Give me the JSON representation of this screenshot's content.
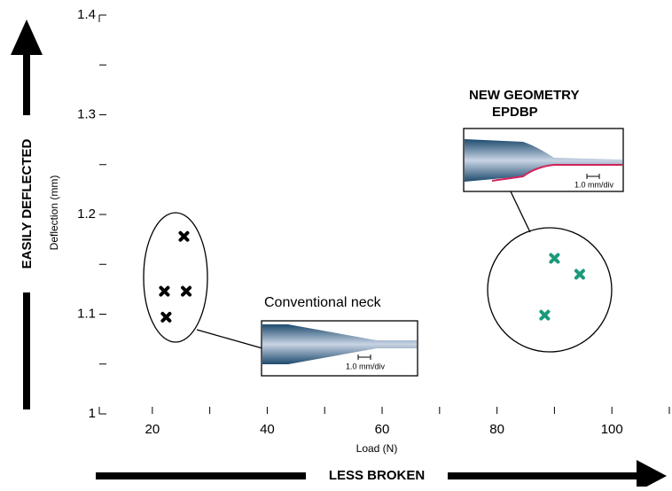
{
  "chart_data": {
    "type": "scatter",
    "xlabel": "Load (N)",
    "ylabel": "Deflection (mm)",
    "xlim": [
      12,
      110
    ],
    "ylim": [
      1,
      1.4
    ],
    "xticks": [
      20,
      40,
      60,
      80,
      100
    ],
    "xminorticks": [
      30,
      50,
      70,
      90,
      110
    ],
    "yticks": [
      1,
      1.1,
      1.2,
      1.3,
      1.4
    ],
    "yminorticks": [
      1.05,
      1.15,
      1.25,
      1.35
    ],
    "series": [
      {
        "color": "#000000",
        "x": [
          22.1,
          25.5,
          25.9,
          22.4
        ],
        "values": [
          1.123,
          1.178,
          1.123,
          1.097
        ]
      },
      {
        "color": "#1a9a7a",
        "x": [
          90.0,
          94.4,
          88.3
        ],
        "values": [
          1.156,
          1.14,
          1.099
        ]
      }
    ],
    "annotations": {
      "conventional": "Conventional neck",
      "scale1": "1.0 mm/div",
      "new_geometry": "NEW GEOMETRY",
      "epdbp": "EPDBP",
      "scale2": "1.0 mm/div",
      "y_arrow": "EASILY DEFLECTED",
      "x_arrow": "LESS BROKEN"
    }
  }
}
